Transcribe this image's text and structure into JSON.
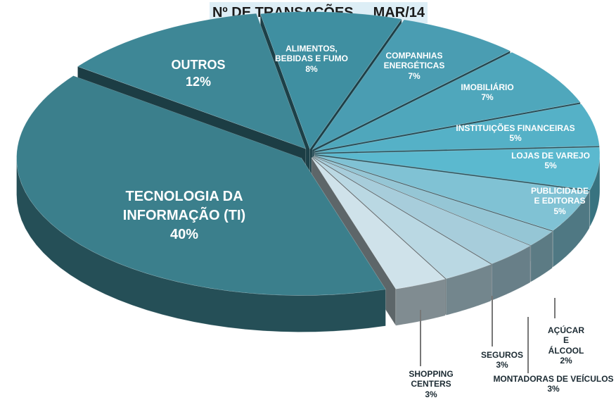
{
  "chart_data": {
    "type": "pie",
    "title": "Nº DE TRANSAÇÕES",
    "period": "MAR/14",
    "categories": [
      "ALIMENTOS, BEBIDAS E FUMO",
      "COMPANHIAS ENERGÉTICAS",
      "IMOBILIÁRIO",
      "INSTITUIÇÕES FINANCEIRAS",
      "LOJAS DE VAREJO",
      "PUBLICIDADE E EDITORAS",
      "AÇÚCAR E ÁLCOOL",
      "MONTADORAS DE VEÍCULOS",
      "SEGUROS",
      "SHOPPING CENTERS",
      "TECNOLOGIA DA INFORMAÇÃO (TI)",
      "OUTROS"
    ],
    "values": [
      8,
      7,
      7,
      5,
      5,
      5,
      2,
      3,
      3,
      3,
      40,
      12
    ],
    "value_labels": [
      "8%",
      "7%",
      "7%",
      "5%",
      "5%",
      "5%",
      "2%",
      "3%",
      "3%",
      "3%",
      "40%",
      "12%"
    ],
    "colors": [
      "#3f8fa1",
      "#4a9db2",
      "#4fa7bc",
      "#55b1c7",
      "#5bb9cf",
      "#80c2d4",
      "#95c6d5",
      "#a7cddb",
      "#bad8e3",
      "#cfe2ea",
      "#3b7f8c",
      "#3e8796"
    ],
    "legend": "none"
  }
}
